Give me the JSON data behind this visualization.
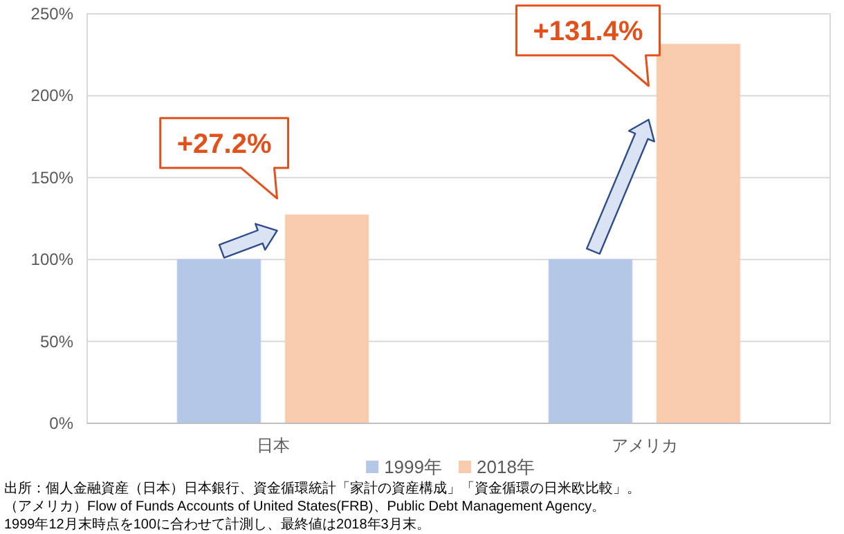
{
  "chart_data": {
    "type": "bar",
    "categories": [
      "日本",
      "アメリカ"
    ],
    "series": [
      {
        "name": "1999年",
        "color": "#b4c7e7",
        "values": [
          100,
          100
        ]
      },
      {
        "name": "2018年",
        "color": "#f8cbad",
        "values": [
          127.2,
          231.4
        ]
      }
    ],
    "ylim": [
      0,
      250
    ],
    "yticks": [
      {
        "value": 0,
        "label": "0%"
      },
      {
        "value": 50,
        "label": "50%"
      },
      {
        "value": 100,
        "label": "100%"
      },
      {
        "value": 150,
        "label": "150%"
      },
      {
        "value": 200,
        "label": "200%"
      },
      {
        "value": 250,
        "label": "250%"
      }
    ],
    "grid": "y",
    "legend": "bottom",
    "annotations": [
      "+27.2%",
      "+131.4%",
      "出所：個人金融資産（日本）日本銀行、資金循環統計「家計の資産構成」「資金循環の日米欧比較」。",
      "（アメリカ）Flow of Funds Accounts of United States(FRB)、Public Debt Management Agency。",
      "1999年12月末時点を100に合わせて計測し、最終値は2018年3月末。"
    ]
  }
}
